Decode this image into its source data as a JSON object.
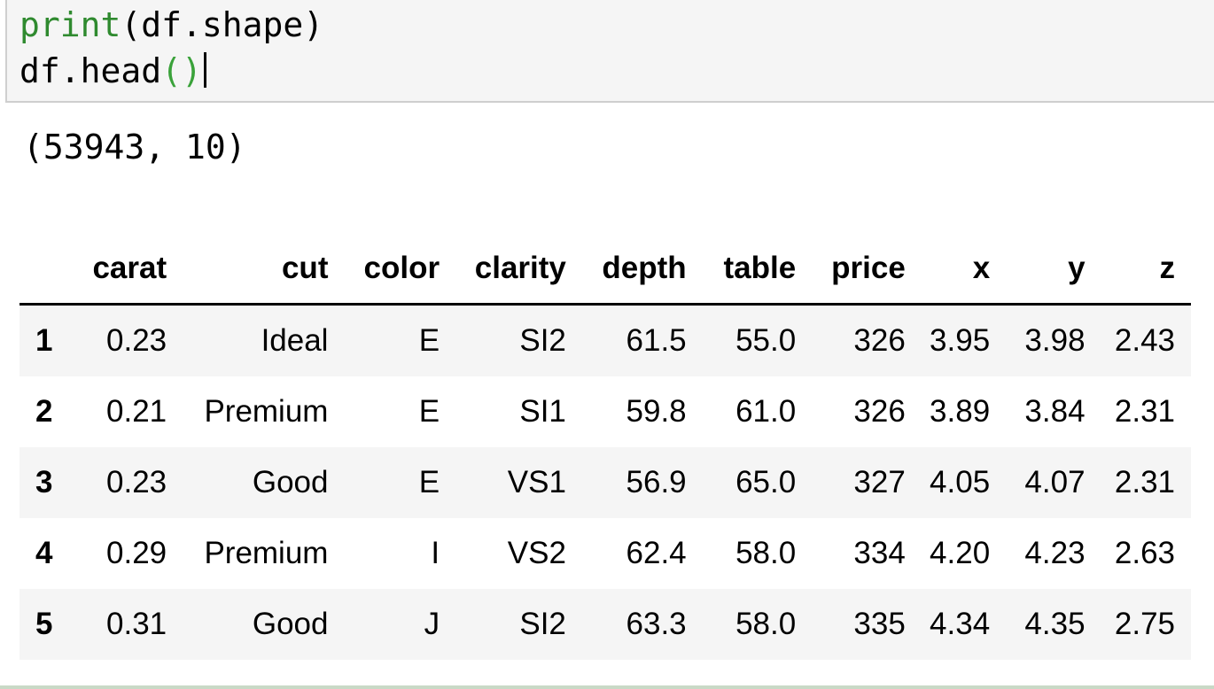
{
  "code_cell": {
    "line1_fn": "print",
    "line1_rest": "(df.shape)",
    "line2_text": "df.head",
    "line2_parens": "()"
  },
  "output": {
    "stdout": "(53943, 10)",
    "table": {
      "columns": [
        "carat",
        "cut",
        "color",
        "clarity",
        "depth",
        "table",
        "price",
        "x",
        "y",
        "z"
      ],
      "rows": [
        {
          "index": "1",
          "cells": [
            "0.23",
            "Ideal",
            "E",
            "SI2",
            "61.5",
            "55.0",
            "326",
            "3.95",
            "3.98",
            "2.43"
          ]
        },
        {
          "index": "2",
          "cells": [
            "0.21",
            "Premium",
            "E",
            "SI1",
            "59.8",
            "61.0",
            "326",
            "3.89",
            "3.84",
            "2.31"
          ]
        },
        {
          "index": "3",
          "cells": [
            "0.23",
            "Good",
            "E",
            "VS1",
            "56.9",
            "65.0",
            "327",
            "4.05",
            "4.07",
            "2.31"
          ]
        },
        {
          "index": "4",
          "cells": [
            "0.29",
            "Premium",
            "I",
            "VS2",
            "62.4",
            "58.0",
            "334",
            "4.20",
            "4.23",
            "2.63"
          ]
        },
        {
          "index": "5",
          "cells": [
            "0.31",
            "Good",
            "J",
            "SI2",
            "63.3",
            "58.0",
            "335",
            "4.34",
            "4.35",
            "2.75"
          ]
        }
      ]
    }
  }
}
